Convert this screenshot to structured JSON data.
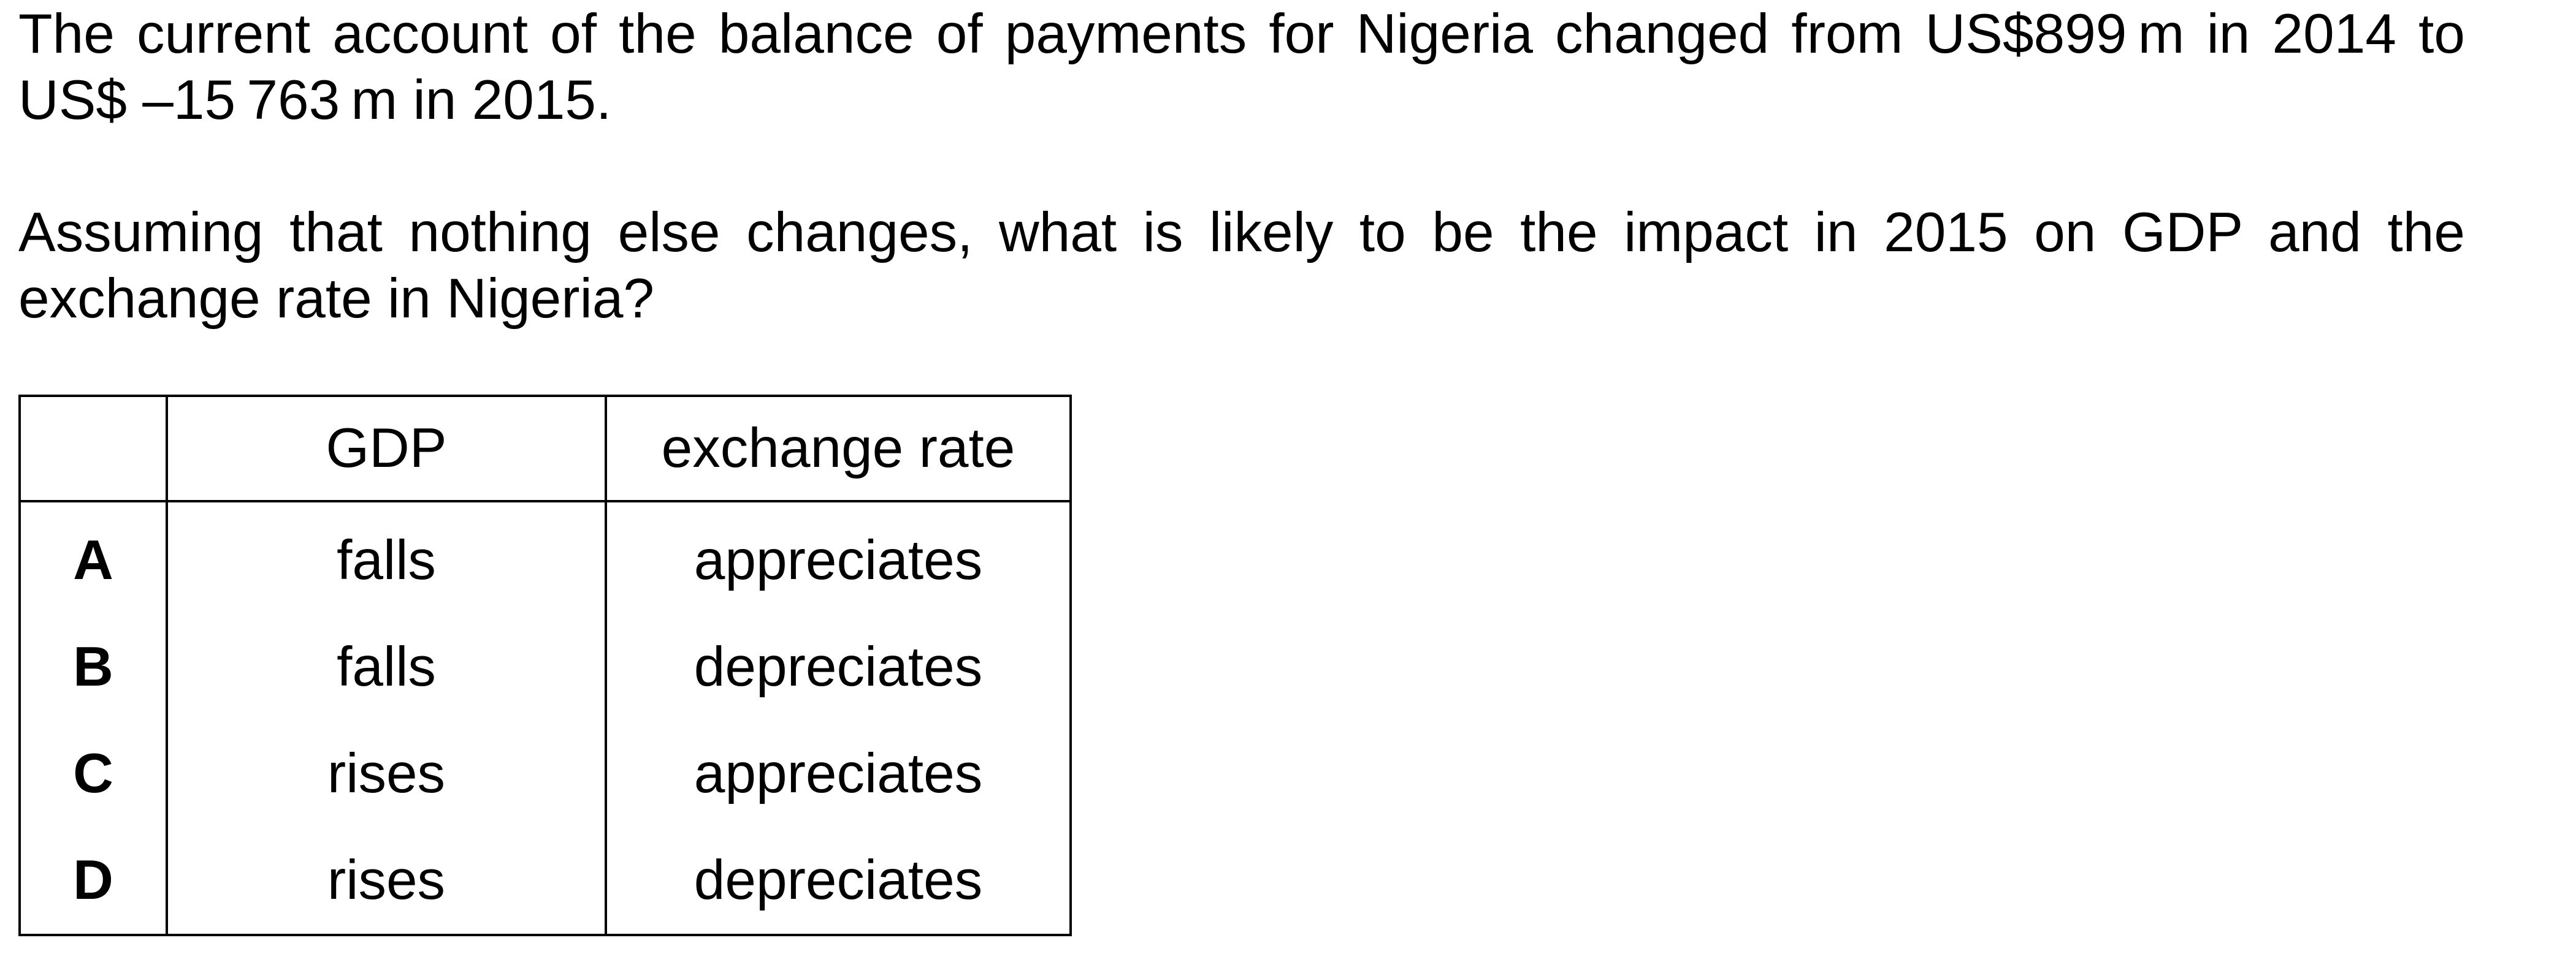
{
  "question": {
    "line1": "The current account of the balance of payments for Nigeria changed from US$899 m in 2014 to US$ –15 763 m in 2015.",
    "line2": "Assuming that nothing else changes, what is likely to be the impact in 2015 on GDP and the exchange rate in Nigeria?"
  },
  "table": {
    "headers": [
      "",
      "GDP",
      "exchange rate"
    ],
    "rows": [
      {
        "letter": "A",
        "gdp": "falls",
        "rate": "appreciates"
      },
      {
        "letter": "B",
        "gdp": "falls",
        "rate": "depreciates"
      },
      {
        "letter": "C",
        "gdp": "rises",
        "rate": "appreciates"
      },
      {
        "letter": "D",
        "gdp": "rises",
        "rate": "depreciates"
      }
    ]
  }
}
